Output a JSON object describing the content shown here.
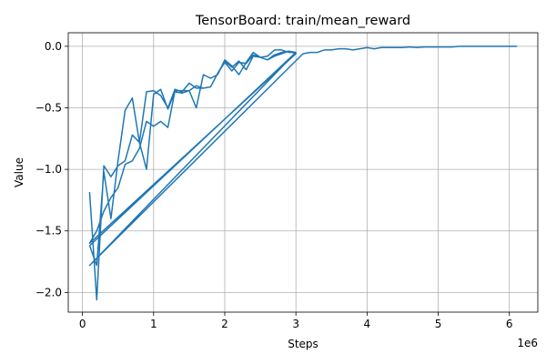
{
  "chart_data": {
    "type": "line",
    "title": "TensorBoard: train/mean_reward",
    "xlabel": "Steps",
    "ylabel": "Value",
    "x_offset_label": "1e6",
    "x_scale": 1000000,
    "xlim": [
      -200000,
      6400000
    ],
    "ylim": [
      -2.16,
      0.11
    ],
    "grid": true,
    "color": "#1f77b4",
    "xticks": [
      {
        "value": 0,
        "label": "0"
      },
      {
        "value": 1000000,
        "label": "1"
      },
      {
        "value": 2000000,
        "label": "2"
      },
      {
        "value": 3000000,
        "label": "3"
      },
      {
        "value": 4000000,
        "label": "4"
      },
      {
        "value": 5000000,
        "label": "5"
      },
      {
        "value": 6000000,
        "label": "6"
      }
    ],
    "yticks": [
      {
        "value": 0.0,
        "label": "0.0"
      },
      {
        "value": -0.5,
        "label": "−0.5"
      },
      {
        "value": -1.0,
        "label": "−1.0"
      },
      {
        "value": -1.5,
        "label": "−1.5"
      },
      {
        "value": -2.0,
        "label": "−2.0"
      }
    ],
    "series": [
      {
        "x": [
          100000,
          200000,
          300000,
          400000,
          500000,
          600000,
          700000,
          800000,
          900000,
          1000000,
          1100000,
          1200000,
          1300000,
          1400000,
          1500000,
          1600000,
          1700000,
          1800000,
          1900000,
          2000000,
          2100000,
          2200000,
          2300000,
          2400000,
          2500000,
          2600000,
          2700000,
          2800000,
          2900000,
          3000000,
          100000,
          200000,
          300000,
          400000,
          500000,
          600000,
          700000,
          800000,
          900000,
          1000000,
          1100000,
          1200000,
          1300000,
          1400000,
          1500000,
          1600000,
          1700000,
          1800000,
          1900000,
          2000000,
          2100000,
          2200000,
          2300000,
          2400000,
          2500000,
          2600000,
          2700000,
          2800000,
          2900000,
          3000000,
          100000,
          200000,
          300000,
          400000,
          500000,
          600000,
          700000,
          800000,
          900000,
          1000000,
          1100000,
          1200000,
          1300000,
          1400000,
          1500000,
          1600000,
          1700000,
          1800000,
          1900000,
          2000000,
          2100000,
          2200000,
          2300000,
          2400000,
          2500000,
          2600000,
          2700000,
          2800000,
          2900000,
          3000000,
          100000,
          3100000,
          3200000,
          3300000,
          3400000,
          3500000,
          3600000,
          3700000,
          3800000,
          3900000,
          4000000,
          4100000,
          4200000,
          4300000,
          4400000,
          4500000,
          4600000,
          4700000,
          4800000,
          4900000,
          5000000,
          5100000,
          5200000,
          5300000,
          5400000,
          5500000,
          5600000,
          5700000,
          5800000,
          5900000,
          6000000,
          6100000
        ],
        "y": [
          -1.19,
          -2.06,
          -0.97,
          -1.06,
          -0.97,
          -0.93,
          -0.72,
          -0.78,
          -1.0,
          -0.39,
          -0.35,
          -0.51,
          -0.37,
          -0.38,
          -0.36,
          -0.5,
          -0.23,
          -0.26,
          -0.23,
          -0.11,
          -0.16,
          -0.23,
          -0.13,
          -0.05,
          -0.09,
          -0.11,
          -0.08,
          -0.06,
          -0.04,
          -0.05,
          -1.62,
          -1.78,
          -1.02,
          -1.4,
          -0.93,
          -0.52,
          -0.42,
          -0.78,
          -0.37,
          -0.36,
          -0.4,
          -0.5,
          -0.35,
          -0.37,
          -0.3,
          -0.34,
          -0.34,
          -0.33,
          -0.22,
          -0.13,
          -0.2,
          -0.13,
          -0.14,
          -0.07,
          -0.09,
          -0.11,
          -0.07,
          -0.05,
          -0.04,
          -0.06,
          -1.6,
          -1.5,
          -1.34,
          -1.23,
          -1.15,
          -0.96,
          -0.93,
          -0.83,
          -0.61,
          -0.65,
          -0.61,
          -0.66,
          -0.36,
          -0.36,
          -0.36,
          -0.32,
          -0.34,
          -0.33,
          -0.22,
          -0.12,
          -0.17,
          -0.12,
          -0.19,
          -0.08,
          -0.09,
          -0.08,
          -0.03,
          -0.03,
          -0.05,
          -0.05,
          -1.78,
          -0.06,
          -0.05,
          -0.05,
          -0.03,
          -0.03,
          -0.02,
          -0.02,
          -0.03,
          -0.02,
          -0.01,
          -0.02,
          -0.01,
          -0.01,
          -0.01,
          -0.01,
          -0.005,
          -0.01,
          -0.005,
          -0.005,
          -0.005,
          -0.005,
          -0.005,
          0.0,
          0.0,
          0.0,
          0.0,
          0.0,
          0.0,
          0.0,
          0.0,
          0.0
        ]
      }
    ]
  }
}
